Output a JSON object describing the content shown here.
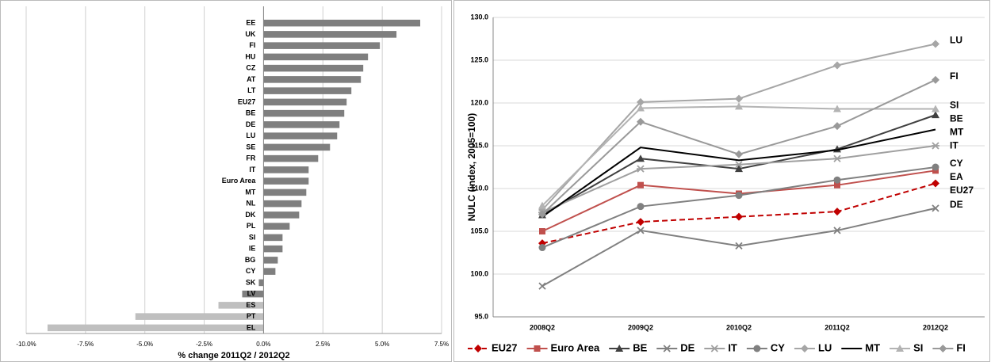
{
  "chart_data": [
    {
      "type": "bar",
      "orientation": "horizontal",
      "x_label": "% change 2011Q2 / 2012Q2",
      "categories": [
        "EE",
        "UK",
        "FI",
        "HU",
        "CZ",
        "AT",
        "LT",
        "EU27",
        "BE",
        "DE",
        "LU",
        "SE",
        "FR",
        "IT",
        "Euro Area",
        "MT",
        "NL",
        "DK",
        "PL",
        "SI",
        "IE",
        "BG",
        "CY",
        "SK",
        "LV",
        "ES",
        "PT",
        "EL"
      ],
      "values": [
        6.6,
        5.6,
        4.9,
        4.4,
        4.2,
        4.1,
        3.7,
        3.5,
        3.4,
        3.2,
        3.1,
        2.8,
        2.3,
        1.9,
        1.9,
        1.8,
        1.6,
        1.5,
        1.1,
        0.8,
        0.8,
        0.6,
        0.5,
        -0.2,
        -0.9,
        -1.9,
        -5.4,
        -9.1
      ],
      "colors": [
        "#7f7f7f",
        "#7f7f7f",
        "#7f7f7f",
        "#7f7f7f",
        "#7f7f7f",
        "#7f7f7f",
        "#7f7f7f",
        "#7f7f7f",
        "#7f7f7f",
        "#7f7f7f",
        "#7f7f7f",
        "#7f7f7f",
        "#7f7f7f",
        "#7f7f7f",
        "#7f7f7f",
        "#7f7f7f",
        "#7f7f7f",
        "#7f7f7f",
        "#7f7f7f",
        "#7f7f7f",
        "#7f7f7f",
        "#7f7f7f",
        "#7f7f7f",
        "#7f7f7f",
        "#7f7f7f",
        "#bfbfbf",
        "#bfbfbf",
        "#bfbfbf"
      ],
      "xlim": [
        -10,
        7.5
      ],
      "xticks": [
        {
          "value": -10,
          "label": "-10.0%"
        },
        {
          "value": -7.5,
          "label": "-7.5%"
        },
        {
          "value": -5,
          "label": "-5.0%"
        },
        {
          "value": -2.5,
          "label": "-2.5%"
        },
        {
          "value": 0,
          "label": "0.0%"
        },
        {
          "value": 2.5,
          "label": "2.5%"
        },
        {
          "value": 5,
          "label": "5.0%"
        },
        {
          "value": 7.5,
          "label": "7.5%"
        }
      ],
      "grid": true
    },
    {
      "type": "line",
      "y_label": "NULC (index, 2005=100)",
      "categories": [
        "2008Q2",
        "2009Q2",
        "2010Q2",
        "2011Q2",
        "2012Q2"
      ],
      "ylim": [
        95,
        130
      ],
      "yticks": [
        {
          "value": 95,
          "label": "95.0"
        },
        {
          "value": 100,
          "label": "100.0"
        },
        {
          "value": 105,
          "label": "105.0"
        },
        {
          "value": 110,
          "label": "110.0"
        },
        {
          "value": 115,
          "label": "115.0"
        },
        {
          "value": 120,
          "label": "120.0"
        },
        {
          "value": 125,
          "label": "125.0"
        },
        {
          "value": 130,
          "label": "130.0"
        }
      ],
      "grid": true,
      "series": [
        {
          "name": "EU27",
          "label": "EU27",
          "color": "#c00000",
          "dash": true,
          "marker": "diamond",
          "values": [
            103.6,
            106.1,
            106.7,
            107.3,
            110.6
          ]
        },
        {
          "name": "Euro Area",
          "label": "EA",
          "color": "#c0504d",
          "dash": false,
          "marker": "square",
          "values": [
            105.0,
            110.4,
            109.4,
            110.4,
            112.1
          ]
        },
        {
          "name": "BE",
          "label": "BE",
          "color": "#404040",
          "dash": false,
          "marker": "triangle",
          "values": [
            106.9,
            113.5,
            112.3,
            114.6,
            118.6
          ]
        },
        {
          "name": "DE",
          "label": "DE",
          "color": "#808080",
          "dash": false,
          "marker": "x",
          "values": [
            98.6,
            105.1,
            103.3,
            105.1,
            107.7
          ]
        },
        {
          "name": "IT",
          "label": "IT",
          "color": "#a0a0a0",
          "dash": false,
          "marker": "star",
          "values": [
            107.2,
            112.3,
            112.8,
            113.5,
            115.0
          ]
        },
        {
          "name": "CY",
          "label": "CY",
          "color": "#808080",
          "dash": false,
          "marker": "circle",
          "values": [
            103.1,
            107.9,
            109.2,
            111.0,
            112.5
          ]
        },
        {
          "name": "LU",
          "label": "LU",
          "color": "#a6a6a6",
          "dash": false,
          "marker": "diamond",
          "values": [
            107.5,
            120.1,
            120.5,
            124.4,
            126.9
          ]
        },
        {
          "name": "MT",
          "label": "MT",
          "color": "#000000",
          "dash": false,
          "marker": "none",
          "values": [
            106.7,
            114.8,
            113.3,
            114.5,
            116.9
          ]
        },
        {
          "name": "SI",
          "label": "SI",
          "color": "#b3b3b3",
          "dash": false,
          "marker": "triangle",
          "values": [
            108.0,
            119.4,
            119.6,
            119.3,
            119.3
          ]
        },
        {
          "name": "FI",
          "label": "FI",
          "color": "#999999",
          "dash": false,
          "marker": "diamond",
          "values": [
            107.0,
            117.8,
            114.0,
            117.3,
            122.7
          ]
        }
      ]
    }
  ]
}
